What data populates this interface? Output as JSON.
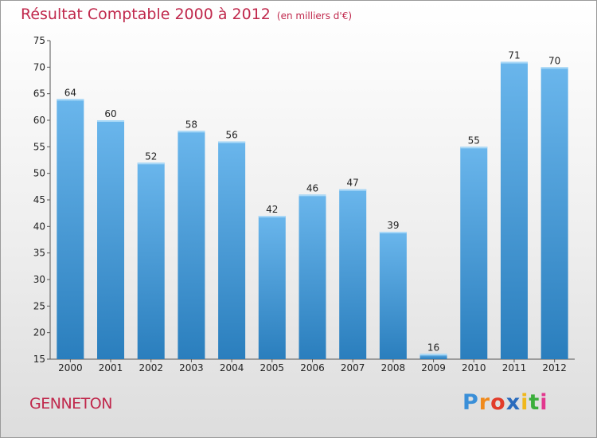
{
  "title": "Résultat Comptable 2000 à 2012",
  "subtitle": "(en milliers d'€)",
  "commune": "GENNETON",
  "logo": {
    "letters": [
      "P",
      "r",
      "o",
      "x",
      "i",
      "t",
      "i"
    ],
    "colors": [
      "#3a8fd8",
      "#f08a1c",
      "#e23c2a",
      "#2a6bbd",
      "#f0b81c",
      "#3cae3c",
      "#e2388e"
    ]
  },
  "colors": {
    "bar_light": "#6ab6ec",
    "bar_dark": "#2a7ebd",
    "title": "#c0284c"
  },
  "chart_data": {
    "type": "bar",
    "categories": [
      "2000",
      "2001",
      "2002",
      "2003",
      "2004",
      "2005",
      "2006",
      "2007",
      "2008",
      "2009",
      "2010",
      "2011",
      "2012"
    ],
    "values": [
      64,
      60,
      52,
      58,
      56,
      42,
      46,
      47,
      39,
      16,
      55,
      71,
      70
    ],
    "ylim": [
      15,
      75
    ],
    "yticks": [
      15,
      20,
      25,
      30,
      35,
      40,
      45,
      50,
      55,
      60,
      65,
      70,
      75
    ],
    "grid": false
  }
}
